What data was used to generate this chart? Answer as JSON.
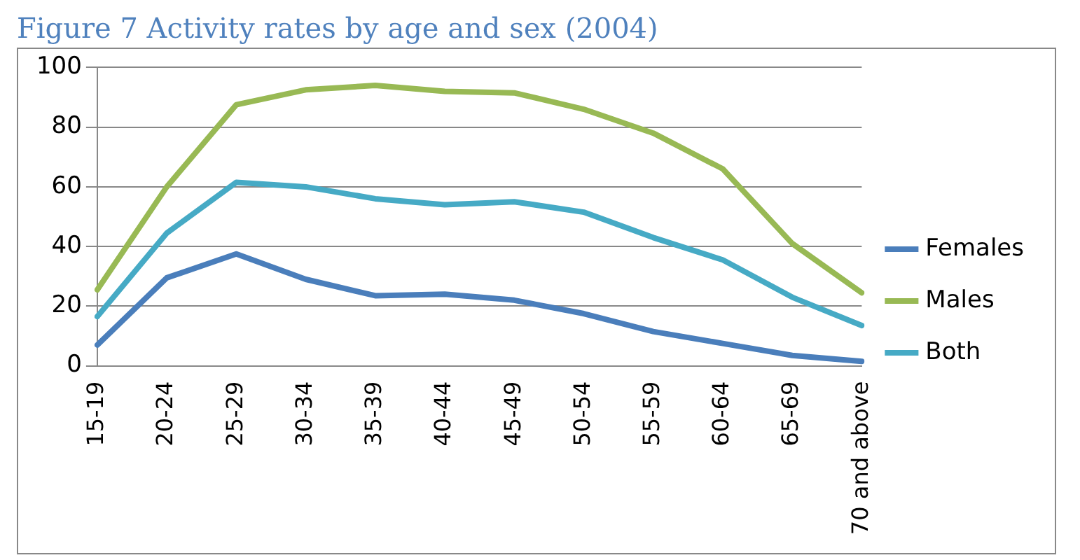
{
  "chart_data": {
    "type": "line",
    "title": "Figure 7 Activity rates by age and sex (2004)",
    "categories": [
      "15-19",
      "20-24",
      "25-29",
      "30-34",
      "35-39",
      "40-44",
      "45-49",
      "50-54",
      "55-59",
      "60-64",
      "65-69",
      "70 and above"
    ],
    "series": [
      {
        "name": "Females",
        "color": "#4a7ebb",
        "values": [
          7,
          29.5,
          37.5,
          29,
          23.5,
          24,
          22,
          17.5,
          11.5,
          7.5,
          3.5,
          1.5
        ]
      },
      {
        "name": "Males",
        "color": "#98b954",
        "values": [
          25.5,
          60,
          87.5,
          92.5,
          94,
          92,
          91.5,
          86,
          78,
          66,
          41,
          24.5
        ]
      },
      {
        "name": "Both",
        "color": "#46aac5",
        "values": [
          16.5,
          44.5,
          61.5,
          60,
          56,
          54,
          55,
          51.5,
          43,
          35.5,
          23,
          13.5
        ]
      }
    ],
    "ylim": [
      0,
      100
    ],
    "yticks": [
      0,
      20,
      40,
      60,
      80,
      100
    ],
    "grid": "y",
    "legend": "right",
    "marker": "none",
    "line_style": "solid"
  }
}
